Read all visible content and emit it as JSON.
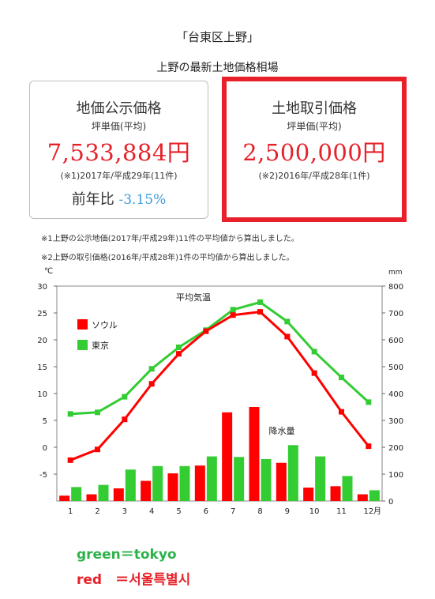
{
  "title": "「台東区上野」",
  "subtitle": "上野の最新土地価格相場",
  "card_public": {
    "heading": "地価公示価格",
    "sub": "坪単価(平均)",
    "price": "7,533,884円",
    "note": "(※1)2017年/平成29年(11件)",
    "change_label": "前年比",
    "change_value": "-3.15%"
  },
  "card_trade": {
    "heading": "土地取引価格",
    "sub": "坪単価(平均)",
    "price": "2,500,000円",
    "note": "(※2)2016年/平成28年(1件)"
  },
  "notes": [
    "※1上野の公示地価(2017年/平成29年)11件の平均値から算出しました。",
    "※2上野の取引価格(2016年/平成28年)1件の平均値から算出しました。"
  ],
  "legend_text": {
    "green": "green＝tokyo",
    "red": "red　＝서울특별시"
  },
  "chart_data": {
    "type": "line+bar",
    "x": [
      1,
      2,
      3,
      4,
      5,
      6,
      7,
      8,
      9,
      10,
      11,
      12
    ],
    "x_unit": "月",
    "y_left_label": "℃",
    "y_left_range": [
      -10,
      30
    ],
    "y_left_ticks": [
      -5,
      0,
      5,
      10,
      15,
      20,
      25,
      30
    ],
    "y_right_label": "mm",
    "y_right_range": [
      0,
      800
    ],
    "y_right_ticks": [
      0,
      100,
      200,
      300,
      400,
      500,
      600,
      700,
      800
    ],
    "temp_label": "平均気温",
    "precip_label": "降水量",
    "colors": {
      "seoul": "#ff0000",
      "tokyo": "#33cc33"
    },
    "legend": [
      "ソウル",
      "東京"
    ],
    "series": [
      {
        "name": "ソウル",
        "kind": "temperature",
        "values": [
          -2.4,
          -0.4,
          5.2,
          11.8,
          17.4,
          21.6,
          24.6,
          25.2,
          20.6,
          13.8,
          6.6,
          0.2
        ]
      },
      {
        "name": "東京",
        "kind": "temperature",
        "values": [
          6.2,
          6.5,
          9.4,
          14.6,
          18.6,
          21.8,
          25.6,
          27.0,
          23.4,
          17.8,
          13.0,
          8.4
        ]
      },
      {
        "name": "ソウル",
        "kind": "precipitation",
        "values": [
          20,
          25,
          47,
          75,
          103,
          132,
          330,
          350,
          142,
          50,
          55,
          25
        ]
      },
      {
        "name": "東京",
        "kind": "precipitation",
        "values": [
          52,
          60,
          117,
          130,
          130,
          166,
          164,
          156,
          208,
          166,
          93,
          40
        ]
      }
    ]
  }
}
